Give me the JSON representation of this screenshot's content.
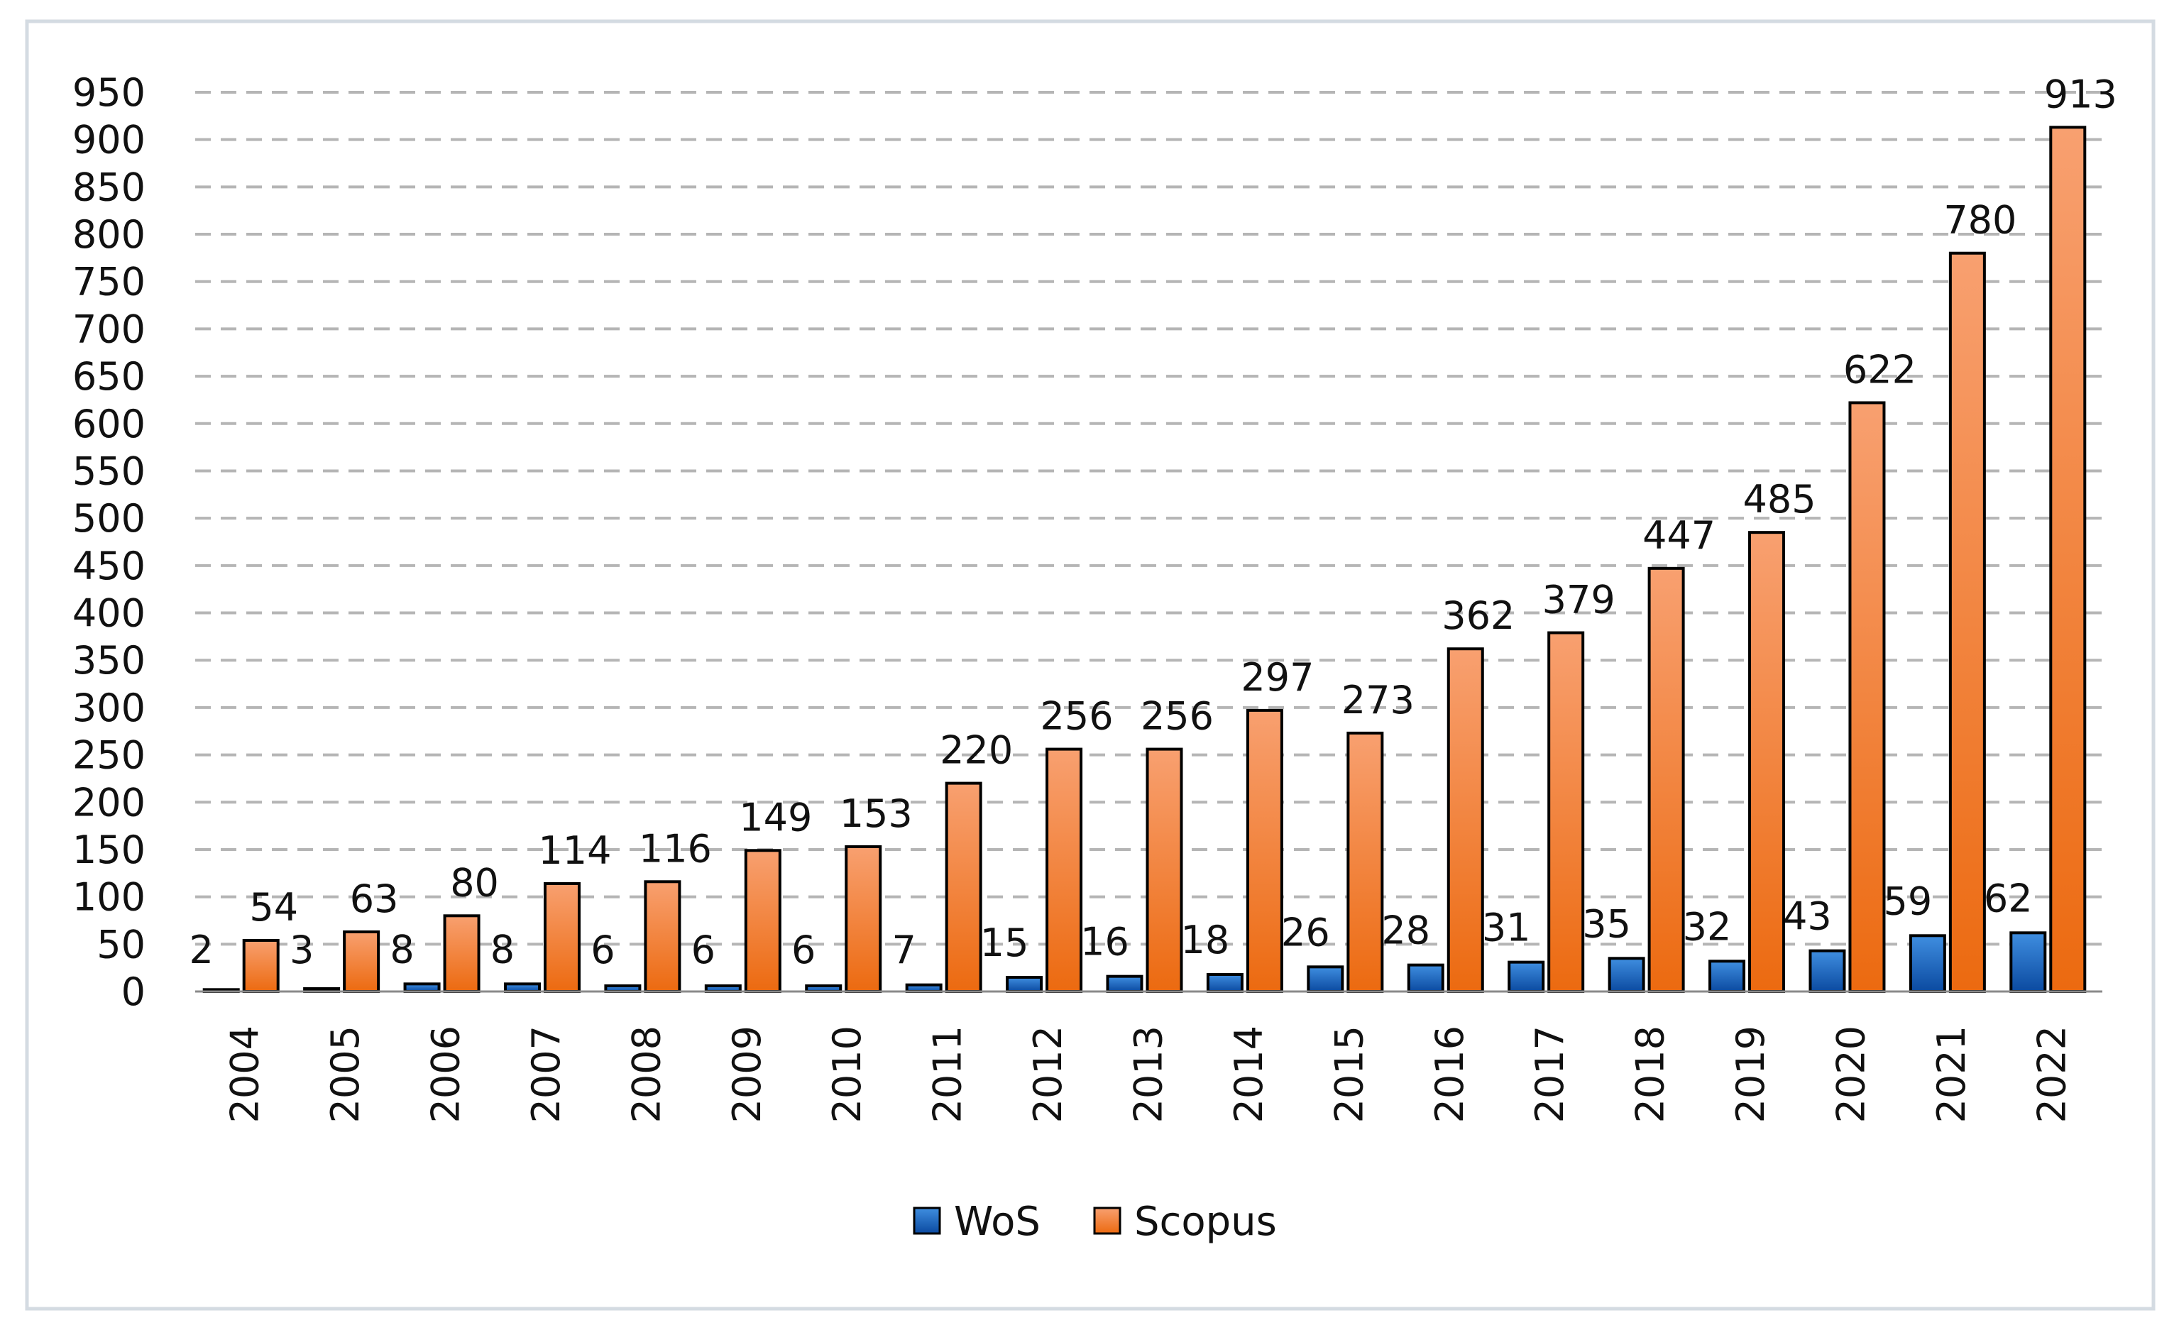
{
  "chart_data": {
    "type": "bar",
    "categories": [
      "2004",
      "2005",
      "2006",
      "2007",
      "2008",
      "2009",
      "2010",
      "2011",
      "2012",
      "2013",
      "2014",
      "2015",
      "2016",
      "2017",
      "2018",
      "2019",
      "2020",
      "2021",
      "2022"
    ],
    "series": [
      {
        "name": "WoS",
        "values": [
          2,
          3,
          8,
          8,
          6,
          6,
          6,
          7,
          15,
          16,
          18,
          26,
          28,
          31,
          35,
          32,
          43,
          59,
          62
        ],
        "color": "#1f6cc4",
        "color_dark": "#0b3f86"
      },
      {
        "name": "Scopus",
        "values": [
          54,
          63,
          80,
          114,
          116,
          149,
          153,
          220,
          256,
          256,
          297,
          273,
          362,
          379,
          447,
          485,
          622,
          780,
          913
        ],
        "color": "#f07a20",
        "color_dark": "#e0600a"
      }
    ],
    "y_ticks": [
      "0",
      "50",
      "100",
      "150",
      "200",
      "250",
      "300",
      "350",
      "400",
      "450",
      "500",
      "550",
      "600",
      "650",
      "700",
      "750",
      "800",
      "850",
      "900",
      "950"
    ],
    "ylim": [
      0,
      950
    ],
    "grid": true,
    "legend_position": "bottom",
    "data_labels": true
  }
}
